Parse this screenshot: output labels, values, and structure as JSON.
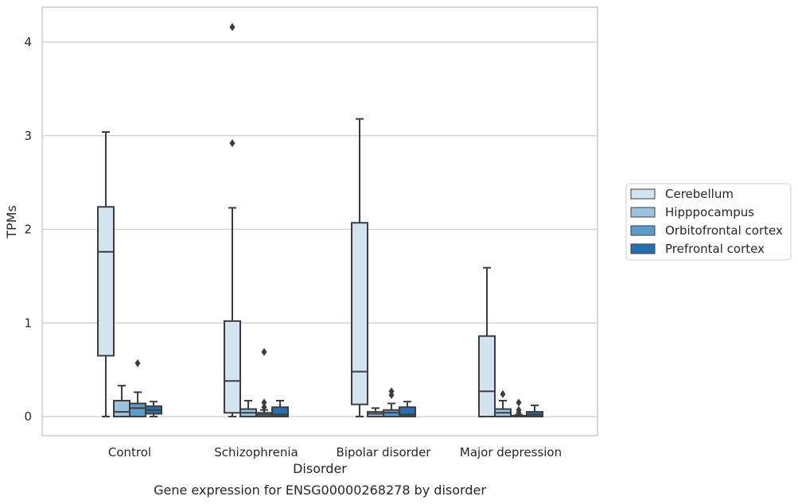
{
  "chart_data": {
    "type": "boxplot",
    "caption": "Gene expression for ENSG00000268278 by disorder",
    "xlabel": "Disorder",
    "ylabel": "TPMs",
    "ylim": [
      -0.2,
      4.38
    ],
    "yticks": [
      0,
      1,
      2,
      3,
      4
    ],
    "grid": "horizontal",
    "legend_placement": "right-center",
    "categories": [
      "Control",
      "Schizophrenia",
      "Bipolar disorder",
      "Major depression"
    ],
    "series": [
      {
        "name": "Cerebellum",
        "color": "#d4e3f1",
        "boxes": [
          {
            "whisker_low": 0.0,
            "q1": 0.65,
            "median": 1.76,
            "q3": 2.24,
            "whisker_high": 3.04,
            "outliers": []
          },
          {
            "whisker_low": 0.0,
            "q1": 0.04,
            "median": 0.38,
            "q3": 1.02,
            "whisker_high": 2.23,
            "outliers": [
              2.92,
              4.16
            ]
          },
          {
            "whisker_low": 0.0,
            "q1": 0.13,
            "median": 0.48,
            "q3": 2.07,
            "whisker_high": 3.18,
            "outliers": []
          },
          {
            "whisker_low": 0.0,
            "q1": 0.0,
            "median": 0.27,
            "q3": 0.86,
            "whisker_high": 1.59,
            "outliers": []
          }
        ]
      },
      {
        "name": "Hipppocampus",
        "color": "#9dc2de",
        "boxes": [
          {
            "whisker_low": 0.0,
            "q1": 0.0,
            "median": 0.05,
            "q3": 0.17,
            "whisker_high": 0.33,
            "outliers": []
          },
          {
            "whisker_low": 0.0,
            "q1": 0.0,
            "median": 0.04,
            "q3": 0.08,
            "whisker_high": 0.17,
            "outliers": []
          },
          {
            "whisker_low": 0.0,
            "q1": 0.0,
            "median": 0.03,
            "q3": 0.05,
            "whisker_high": 0.09,
            "outliers": []
          },
          {
            "whisker_low": 0.0,
            "q1": 0.0,
            "median": 0.04,
            "q3": 0.08,
            "whisker_high": 0.17,
            "outliers": [
              0.24
            ]
          }
        ]
      },
      {
        "name": "Orbitofrontal cortex",
        "color": "#5d9cca",
        "boxes": [
          {
            "whisker_low": 0.0,
            "q1": 0.0,
            "median": 0.09,
            "q3": 0.14,
            "whisker_high": 0.26,
            "outliers": [
              0.57
            ]
          },
          {
            "whisker_low": 0.0,
            "q1": 0.0,
            "median": 0.02,
            "q3": 0.04,
            "whisker_high": 0.07,
            "outliers": [
              0.1,
              0.15,
              0.69
            ]
          },
          {
            "whisker_low": 0.0,
            "q1": 0.0,
            "median": 0.04,
            "q3": 0.07,
            "whisker_high": 0.14,
            "outliers": [
              0.23,
              0.27
            ]
          },
          {
            "whisker_low": 0.0,
            "q1": 0.0,
            "median": 0.0,
            "q3": 0.01,
            "whisker_high": 0.02,
            "outliers": [
              0.04,
              0.07,
              0.15
            ]
          }
        ]
      },
      {
        "name": "Prefrontal cortex",
        "color": "#2a6fad",
        "boxes": [
          {
            "whisker_low": 0.0,
            "q1": 0.03,
            "median": 0.07,
            "q3": 0.11,
            "whisker_high": 0.16,
            "outliers": []
          },
          {
            "whisker_low": 0.0,
            "q1": 0.0,
            "median": 0.02,
            "q3": 0.1,
            "whisker_high": 0.17,
            "outliers": []
          },
          {
            "whisker_low": 0.0,
            "q1": 0.0,
            "median": 0.02,
            "q3": 0.1,
            "whisker_high": 0.16,
            "outliers": []
          },
          {
            "whisker_low": 0.0,
            "q1": 0.0,
            "median": 0.02,
            "q3": 0.05,
            "whisker_high": 0.12,
            "outliers": []
          }
        ]
      }
    ]
  }
}
